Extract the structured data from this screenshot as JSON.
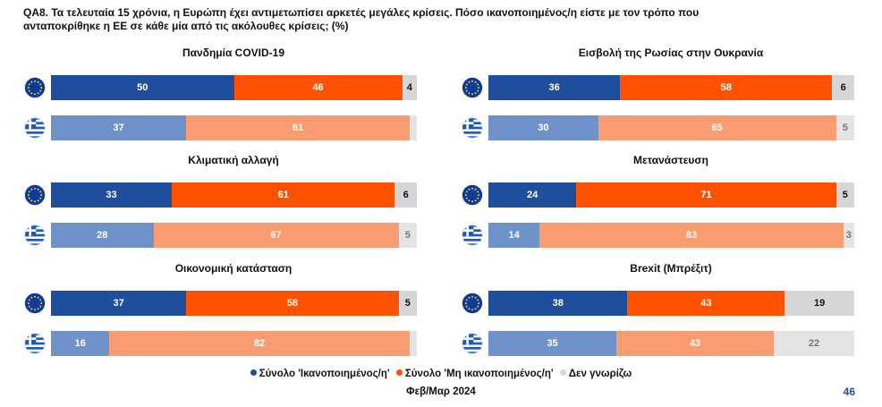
{
  "question": "QA8. Τα τελευταία 15 χρόνια, η Ευρώπη έχει αντιμετωπίσει αρκετές μεγάλες κρίσεις. Πόσο ικανοποιημένος/η είστε με τον τρόπο που αντα­ποκρίθηκε η ΕΕ σε κάθε μία από τις ακόλουθες κρίσεις; (%)",
  "colors": {
    "eu_satisfied": "#1f4e9c",
    "eu_not_satisfied": "#ff5200",
    "eu_dont_know": "#d6d6d6",
    "gr_satisfied": "#6f92c8",
    "gr_not_satisfied": "#f99c72",
    "gr_dont_know": "#e4e4e4"
  },
  "legend": [
    {
      "label": "Σύνολο 'Ικανοποιημένος/η'",
      "color": "#1f4e9c"
    },
    {
      "label": "Σύνολο 'Μη ικανοποιημένος/η'",
      "color": "#ff5200"
    },
    {
      "label": "Δεν γνωρίζω",
      "color": "#d6d6d6"
    }
  ],
  "chart_data": {
    "type": "bar",
    "stacked": true,
    "orientation": "horizontal",
    "series_names": [
      "Σύνολο 'Ικανοποιημένος/η'",
      "Σύνολο 'Μη ικανοποιημένος/η'",
      "Δεν γνωρίζω"
    ],
    "panels": [
      {
        "title": "Πανδημία COVID-19",
        "eu": [
          50,
          46,
          4
        ],
        "gr": [
          37,
          61,
          2
        ],
        "gr_labels": [
          "37",
          "61",
          ""
        ]
      },
      {
        "title": "Εισβολή της Ρωσίας στην Ουκρανία",
        "eu": [
          36,
          58,
          6
        ],
        "gr": [
          30,
          65,
          5
        ],
        "gr_labels": [
          "30",
          "65",
          "5"
        ]
      },
      {
        "title": "Κλιματική αλλαγή",
        "eu": [
          33,
          61,
          6
        ],
        "gr": [
          28,
          67,
          5
        ],
        "gr_labels": [
          "28",
          "67",
          "5"
        ]
      },
      {
        "title": "Μετανάστευση",
        "eu": [
          24,
          71,
          5
        ],
        "gr": [
          14,
          83,
          3
        ],
        "gr_labels": [
          "14",
          "83",
          "3"
        ]
      },
      {
        "title": "Οικονομική κατάσταση",
        "eu": [
          37,
          58,
          5
        ],
        "gr": [
          16,
          82,
          2
        ],
        "gr_labels": [
          "16",
          "82",
          ""
        ]
      },
      {
        "title": "Brexit (Μπρέξιτ)",
        "eu": [
          38,
          43,
          19
        ],
        "gr": [
          35,
          43,
          22
        ],
        "gr_labels": [
          "35",
          "43",
          "22"
        ]
      }
    ]
  },
  "footer": "Φεβ/Μαρ 2024",
  "page_number": "46"
}
